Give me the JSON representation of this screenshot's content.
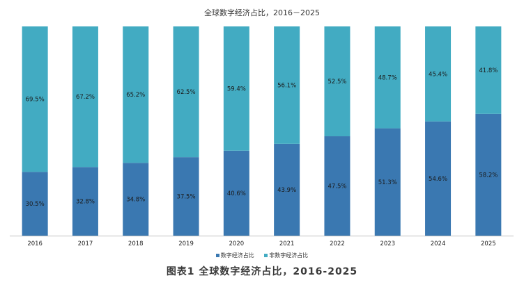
{
  "chart_data": {
    "type": "bar",
    "stacked": true,
    "title": "全球数字经济占比，2016－2025",
    "categories": [
      "2016",
      "2017",
      "2018",
      "2019",
      "2020",
      "2021",
      "2022",
      "2023",
      "2024",
      "2025"
    ],
    "series": [
      {
        "name": "数字经济占比",
        "color": "#3a78b1",
        "values": [
          30.5,
          32.8,
          34.8,
          37.5,
          40.6,
          43.9,
          47.5,
          51.3,
          54.6,
          58.2
        ],
        "labels": [
          "30.5%",
          "32.8%",
          "34.8%",
          "37.5%",
          "40.6%",
          "43.9%",
          "47.5%",
          "51.3%",
          "54.6%",
          "58.2%"
        ]
      },
      {
        "name": "非数字经济占比",
        "color": "#42abc2",
        "values": [
          69.5,
          67.2,
          65.2,
          62.5,
          59.4,
          56.1,
          52.5,
          48.7,
          45.4,
          41.8
        ],
        "labels": [
          "69.5%",
          "67.2%",
          "65.2%",
          "62.5%",
          "59.4%",
          "56.1%",
          "52.5%",
          "48.7%",
          "45.4%",
          "41.8%"
        ]
      }
    ],
    "ylim": [
      0,
      100
    ],
    "grid": false,
    "legend_position": "bottom"
  },
  "caption": "图表1 全球数字经济占比，2016-2025"
}
